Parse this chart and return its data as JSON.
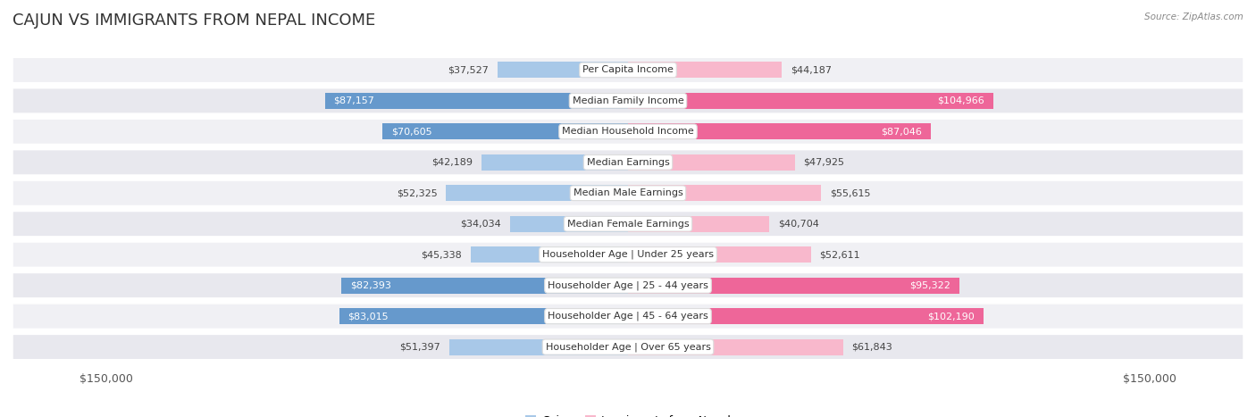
{
  "title": "Cajun vs Immigrants from Nepal Income",
  "source": "Source: ZipAtlas.com",
  "categories": [
    "Per Capita Income",
    "Median Family Income",
    "Median Household Income",
    "Median Earnings",
    "Median Male Earnings",
    "Median Female Earnings",
    "Householder Age | Under 25 years",
    "Householder Age | 25 - 44 years",
    "Householder Age | 45 - 64 years",
    "Householder Age | Over 65 years"
  ],
  "cajun_values": [
    37527,
    87157,
    70605,
    42189,
    52325,
    34034,
    45338,
    82393,
    83015,
    51397
  ],
  "nepal_values": [
    44187,
    104966,
    87046,
    47925,
    55615,
    40704,
    52611,
    95322,
    102190,
    61843
  ],
  "cajun_labels": [
    "$37,527",
    "$87,157",
    "$70,605",
    "$42,189",
    "$52,325",
    "$34,034",
    "$45,338",
    "$82,393",
    "$83,015",
    "$51,397"
  ],
  "nepal_labels": [
    "$44,187",
    "$104,966",
    "$87,046",
    "$47,925",
    "$55,615",
    "$40,704",
    "$52,611",
    "$95,322",
    "$102,190",
    "$61,843"
  ],
  "cajun_color_light": "#a8c8e8",
  "cajun_color_dark": "#6699cc",
  "nepal_color_light": "#f8b8cc",
  "nepal_color_dark": "#ee6699",
  "row_colors": [
    "#f0f0f4",
    "#e8e8ee"
  ],
  "x_max": 150000,
  "x_tick_labels": [
    "$150,000",
    "$150,000"
  ],
  "legend_cajun": "Cajun",
  "legend_nepal": "Immigrants from Nepal",
  "title_fontsize": 13,
  "category_fontsize": 8.0,
  "value_label_fontsize": 8.0,
  "inside_threshold_cajun": 65000,
  "inside_threshold_nepal": 65000
}
